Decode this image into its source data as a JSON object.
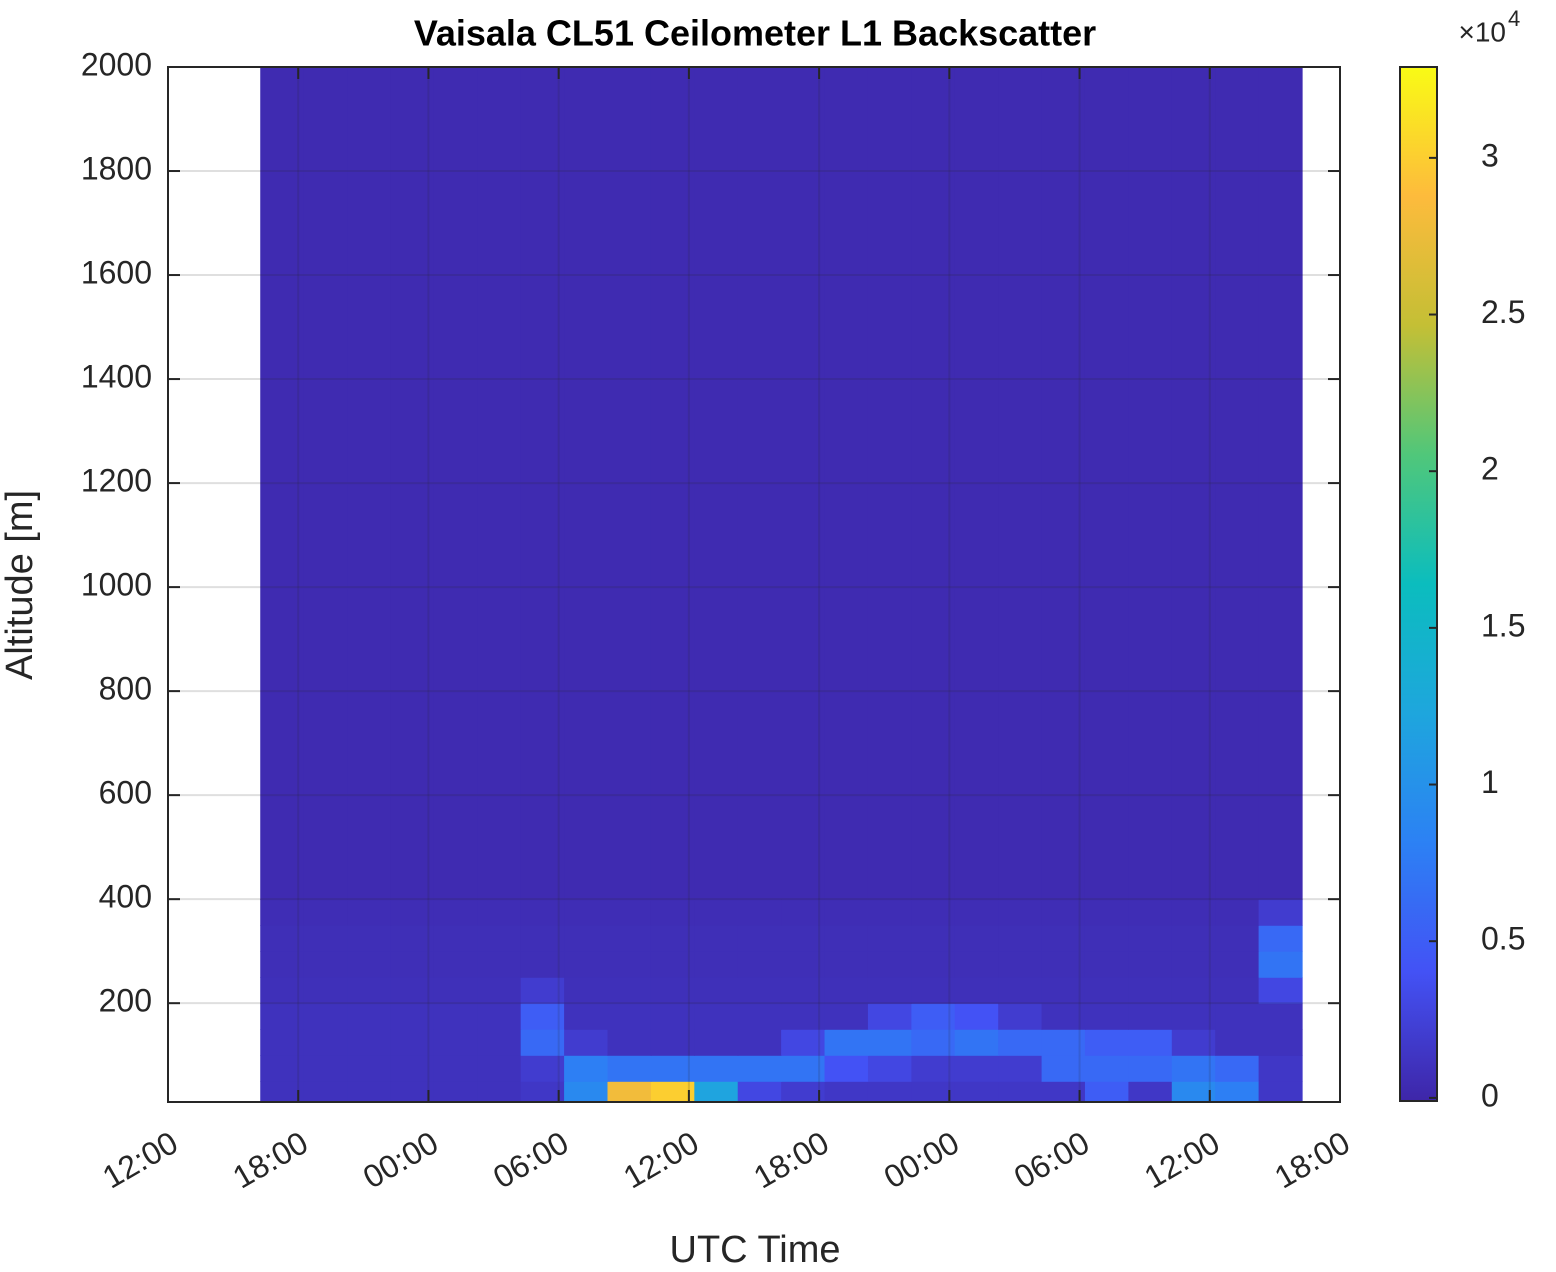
{
  "chart_data": {
    "type": "heatmap",
    "title": "Vaisala CL51 Ceilometer L1 Backscatter",
    "xlabel": "UTC Time",
    "ylabel": "Altitude [m]",
    "xlim": [
      0,
      54
    ],
    "xticks": [
      {
        "value": 0,
        "label": "12:00"
      },
      {
        "value": 6,
        "label": "18:00"
      },
      {
        "value": 12,
        "label": "00:00"
      },
      {
        "value": 18,
        "label": "06:00"
      },
      {
        "value": 24,
        "label": "12:00"
      },
      {
        "value": 30,
        "label": "18:00"
      },
      {
        "value": 36,
        "label": "00:00"
      },
      {
        "value": 42,
        "label": "06:00"
      },
      {
        "value": 48,
        "label": "12:00"
      },
      {
        "value": 54,
        "label": "18:00"
      }
    ],
    "ylim": [
      10,
      2000
    ],
    "yticks": [
      200,
      400,
      600,
      800,
      1000,
      1200,
      1400,
      1600,
      1800,
      2000
    ],
    "grid": true,
    "colormap": "parula",
    "clim": [
      -0.01,
      3.29
    ],
    "cticks": [
      0,
      0.5,
      1,
      1.5,
      2,
      2.5,
      3
    ],
    "colorbar_multiplier": "×10",
    "colorbar_exponent": 4,
    "x_edges": [
      4.25,
      6.25,
      8.25,
      10.25,
      12.25,
      14.25,
      16.25,
      18.25,
      20.25,
      22.25,
      24.25,
      26.25,
      28.25,
      30.25,
      32.25,
      34.25,
      36.25,
      38.25,
      40.25,
      42.25,
      44.25,
      46.25,
      48.25,
      50.25,
      52.25
    ],
    "y_edges": [
      10,
      50,
      100,
      150,
      200,
      250,
      300,
      350,
      400,
      2000
    ],
    "z": [
      [
        0.1,
        0.1,
        0.1,
        0.1,
        0.1,
        0.1,
        0.15,
        0.9,
        2.8,
        3.0,
        1.2,
        0.3,
        0.2,
        0.15,
        0.15,
        0.15,
        0.15,
        0.15,
        0.15,
        0.5,
        0.15,
        0.9,
        0.8,
        0.15
      ],
      [
        0.1,
        0.1,
        0.1,
        0.1,
        0.1,
        0.1,
        0.2,
        0.8,
        0.7,
        0.7,
        0.7,
        0.7,
        0.7,
        0.4,
        0.3,
        0.2,
        0.2,
        0.2,
        0.6,
        0.6,
        0.6,
        0.7,
        0.6,
        0.15
      ],
      [
        0.1,
        0.1,
        0.1,
        0.1,
        0.1,
        0.1,
        0.6,
        0.2,
        0.1,
        0.1,
        0.1,
        0.1,
        0.3,
        0.7,
        0.7,
        0.6,
        0.7,
        0.6,
        0.6,
        0.5,
        0.5,
        0.2,
        0.1,
        0.1
      ],
      [
        0.1,
        0.1,
        0.1,
        0.1,
        0.1,
        0.1,
        0.5,
        0.1,
        0.1,
        0.1,
        0.1,
        0.1,
        0.1,
        0.1,
        0.3,
        0.5,
        0.4,
        0.2,
        0.1,
        0.1,
        0.1,
        0.1,
        0.1,
        0.1
      ],
      [
        0.08,
        0.08,
        0.08,
        0.08,
        0.08,
        0.08,
        0.2,
        0.08,
        0.08,
        0.08,
        0.08,
        0.08,
        0.08,
        0.08,
        0.08,
        0.08,
        0.08,
        0.08,
        0.08,
        0.08,
        0.08,
        0.08,
        0.08,
        0.3
      ],
      [
        0.07,
        0.07,
        0.07,
        0.07,
        0.07,
        0.07,
        0.07,
        0.07,
        0.07,
        0.07,
        0.07,
        0.07,
        0.07,
        0.07,
        0.07,
        0.07,
        0.07,
        0.07,
        0.07,
        0.07,
        0.07,
        0.07,
        0.07,
        0.7
      ],
      [
        0.07,
        0.07,
        0.07,
        0.07,
        0.07,
        0.07,
        0.07,
        0.07,
        0.07,
        0.07,
        0.07,
        0.07,
        0.07,
        0.07,
        0.07,
        0.07,
        0.07,
        0.07,
        0.07,
        0.07,
        0.07,
        0.07,
        0.07,
        0.6
      ],
      [
        0.06,
        0.06,
        0.06,
        0.06,
        0.06,
        0.06,
        0.06,
        0.06,
        0.06,
        0.06,
        0.06,
        0.06,
        0.06,
        0.06,
        0.06,
        0.06,
        0.06,
        0.06,
        0.06,
        0.06,
        0.06,
        0.06,
        0.06,
        0.2
      ],
      [
        0.04,
        0.04,
        0.04,
        0.04,
        0.04,
        0.04,
        0.04,
        0.04,
        0.04,
        0.04,
        0.04,
        0.04,
        0.04,
        0.04,
        0.04,
        0.04,
        0.04,
        0.04,
        0.04,
        0.04,
        0.04,
        0.04,
        0.04,
        0.04
      ]
    ]
  }
}
